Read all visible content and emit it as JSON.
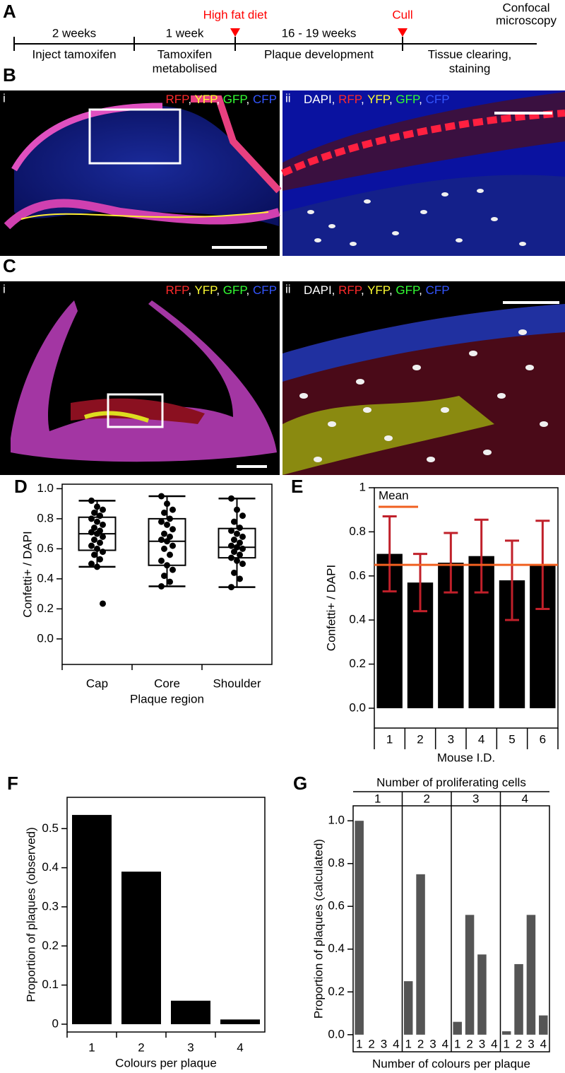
{
  "timeline": {
    "panel_label": "A",
    "segments": [
      {
        "duration": "2 weeks",
        "event": [
          "Inject tamoxifen"
        ]
      },
      {
        "duration": "1 week",
        "event": [
          "Tamoxifen",
          "metabolised"
        ]
      },
      {
        "duration": "16 - 19 weeks",
        "event": [
          "Plaque development"
        ]
      },
      {
        "event": [
          "Tissue clearing,",
          "staining"
        ]
      }
    ],
    "markers": [
      {
        "label": "High fat diet",
        "color": "#ff0000"
      },
      {
        "label": "Cull",
        "color": "#ff0000"
      }
    ],
    "end_label": [
      "Confocal",
      "microscopy"
    ]
  },
  "images": [
    {
      "panel_label": "B",
      "parts": [
        {
          "label": "i",
          "channels": [
            {
              "text": "RFP",
              "color": "#ff2a2a"
            },
            {
              "text": ", ",
              "color": "#ffffff"
            },
            {
              "text": "YFP",
              "color": "#ffff33"
            },
            {
              "text": ", ",
              "color": "#ffffff"
            },
            {
              "text": "GFP",
              "color": "#33ff33"
            },
            {
              "text": ", ",
              "color": "#ffffff"
            },
            {
              "text": "CFP",
              "color": "#3355ff"
            }
          ]
        },
        {
          "label": "ii",
          "channels": [
            {
              "text": "DAPI, ",
              "color": "#ffffff"
            },
            {
              "text": "RFP",
              "color": "#ff2a2a"
            },
            {
              "text": ", ",
              "color": "#ffffff"
            },
            {
              "text": "YFP",
              "color": "#ffff33"
            },
            {
              "text": ", ",
              "color": "#ffffff"
            },
            {
              "text": "GFP",
              "color": "#33ff33"
            },
            {
              "text": ", ",
              "color": "#ffffff"
            },
            {
              "text": "CFP",
              "color": "#3355ff"
            }
          ]
        }
      ]
    },
    {
      "panel_label": "C",
      "parts": [
        {
          "label": "i",
          "channels": [
            {
              "text": "RFP",
              "color": "#ff2a2a"
            },
            {
              "text": ", ",
              "color": "#ffffff"
            },
            {
              "text": "YFP",
              "color": "#ffff33"
            },
            {
              "text": ", ",
              "color": "#ffffff"
            },
            {
              "text": "GFP",
              "color": "#33ff33"
            },
            {
              "text": ", ",
              "color": "#ffffff"
            },
            {
              "text": "CFP",
              "color": "#3355ff"
            }
          ]
        },
        {
          "label": "ii",
          "channels": [
            {
              "text": "DAPI, ",
              "color": "#ffffff"
            },
            {
              "text": "RFP",
              "color": "#ff2a2a"
            },
            {
              "text": ", ",
              "color": "#ffffff"
            },
            {
              "text": "YFP",
              "color": "#ffff33"
            },
            {
              "text": ", ",
              "color": "#ffffff"
            },
            {
              "text": "GFP",
              "color": "#33ff33"
            },
            {
              "text": ", ",
              "color": "#ffffff"
            },
            {
              "text": "CFP",
              "color": "#3355ff"
            }
          ]
        }
      ]
    }
  ],
  "chart_data": [
    {
      "type": "box",
      "panel_label": "D",
      "x_label": "Plaque region",
      "y_label": "Confetti+ / DAPI",
      "categories": [
        "Cap",
        "Core",
        "Shoulder"
      ],
      "color": "#000000",
      "boxes": [
        {
          "min": 0.48,
          "q1": 0.59,
          "median": 0.7,
          "q3": 0.81,
          "max": 0.92,
          "points": [
            0.92,
            0.88,
            0.86,
            0.84,
            0.82,
            0.8,
            0.78,
            0.76,
            0.74,
            0.72,
            0.71,
            0.7,
            0.68,
            0.66,
            0.64,
            0.62,
            0.6,
            0.58,
            0.56,
            0.53,
            0.5,
            0.48,
            0.235
          ]
        },
        {
          "min": 0.35,
          "q1": 0.49,
          "median": 0.65,
          "q3": 0.8,
          "max": 0.95,
          "points": [
            0.95,
            0.9,
            0.86,
            0.84,
            0.8,
            0.78,
            0.76,
            0.73,
            0.7,
            0.68,
            0.66,
            0.65,
            0.62,
            0.6,
            0.56,
            0.52,
            0.49,
            0.46,
            0.42,
            0.38,
            0.35
          ]
        },
        {
          "min": 0.345,
          "q1": 0.54,
          "median": 0.61,
          "q3": 0.735,
          "max": 0.935,
          "points": [
            0.935,
            0.86,
            0.82,
            0.78,
            0.74,
            0.72,
            0.7,
            0.68,
            0.66,
            0.64,
            0.62,
            0.61,
            0.6,
            0.58,
            0.56,
            0.54,
            0.52,
            0.5,
            0.44,
            0.4,
            0.345
          ]
        }
      ],
      "ylim": [
        -0.17,
        1.03
      ],
      "yticks": [
        {
          "value": 0,
          "label": "0.0"
        },
        0.2,
        0.4,
        0.6,
        0.8,
        {
          "value": 1,
          "label": "1.0"
        }
      ]
    },
    {
      "type": "bar_error",
      "panel_label": "E",
      "x_label": "Mouse I.D.",
      "y_label": "Confetti+ / DAPI",
      "categories": [
        "1",
        "2",
        "3",
        "4",
        "5",
        "6"
      ],
      "values": [
        0.7,
        0.57,
        0.66,
        0.69,
        0.58,
        0.65
      ],
      "errors": [
        0.17,
        0.13,
        0.135,
        0.165,
        0.18,
        0.2
      ],
      "color": "#000000",
      "error_color": "#c0202a",
      "mean": 0.65,
      "mean_label": "Mean",
      "mean_color": "#f06020",
      "ylim": [
        -0.09,
        1.0
      ],
      "yticks": [
        {
          "value": 0,
          "label": "0.0"
        },
        0.2,
        0.4,
        0.6,
        0.8,
        1
      ]
    },
    {
      "type": "bar",
      "panel_label": "F",
      "x_label": "Colours per plaque",
      "y_label": "Proportion of plaques (observed)",
      "categories": [
        "1",
        "2",
        "3",
        "4"
      ],
      "values": [
        0.535,
        0.39,
        0.06,
        0.012
      ],
      "color": "#000000",
      "ylim": [
        -0.02,
        0.58
      ],
      "yticks": [
        0,
        0.1,
        0.2,
        0.3,
        0.4,
        0.5
      ]
    },
    {
      "type": "grouped_bar",
      "panel_label": "G",
      "title": "Number of proliferating cells",
      "x_label": "Number of colours per plaque",
      "y_label": "Proportion of plaques (calculated)",
      "categories": [
        "1",
        "2",
        "3",
        "4"
      ],
      "groups": [
        {
          "label": "1",
          "values": [
            1.0,
            0,
            0,
            0
          ]
        },
        {
          "label": "2",
          "values": [
            0.25,
            0.75,
            0,
            0
          ]
        },
        {
          "label": "3",
          "values": [
            0.06,
            0.56,
            0.375,
            0
          ]
        },
        {
          "label": "4",
          "values": [
            0.016,
            0.33,
            0.56,
            0.09
          ]
        }
      ],
      "color": "#555555",
      "ylim": [
        -0.08,
        1.07
      ],
      "yticks": [
        {
          "value": 0,
          "label": "0.0"
        },
        0.2,
        0.4,
        0.6,
        0.8,
        {
          "value": 1,
          "label": "1.0"
        }
      ]
    }
  ]
}
